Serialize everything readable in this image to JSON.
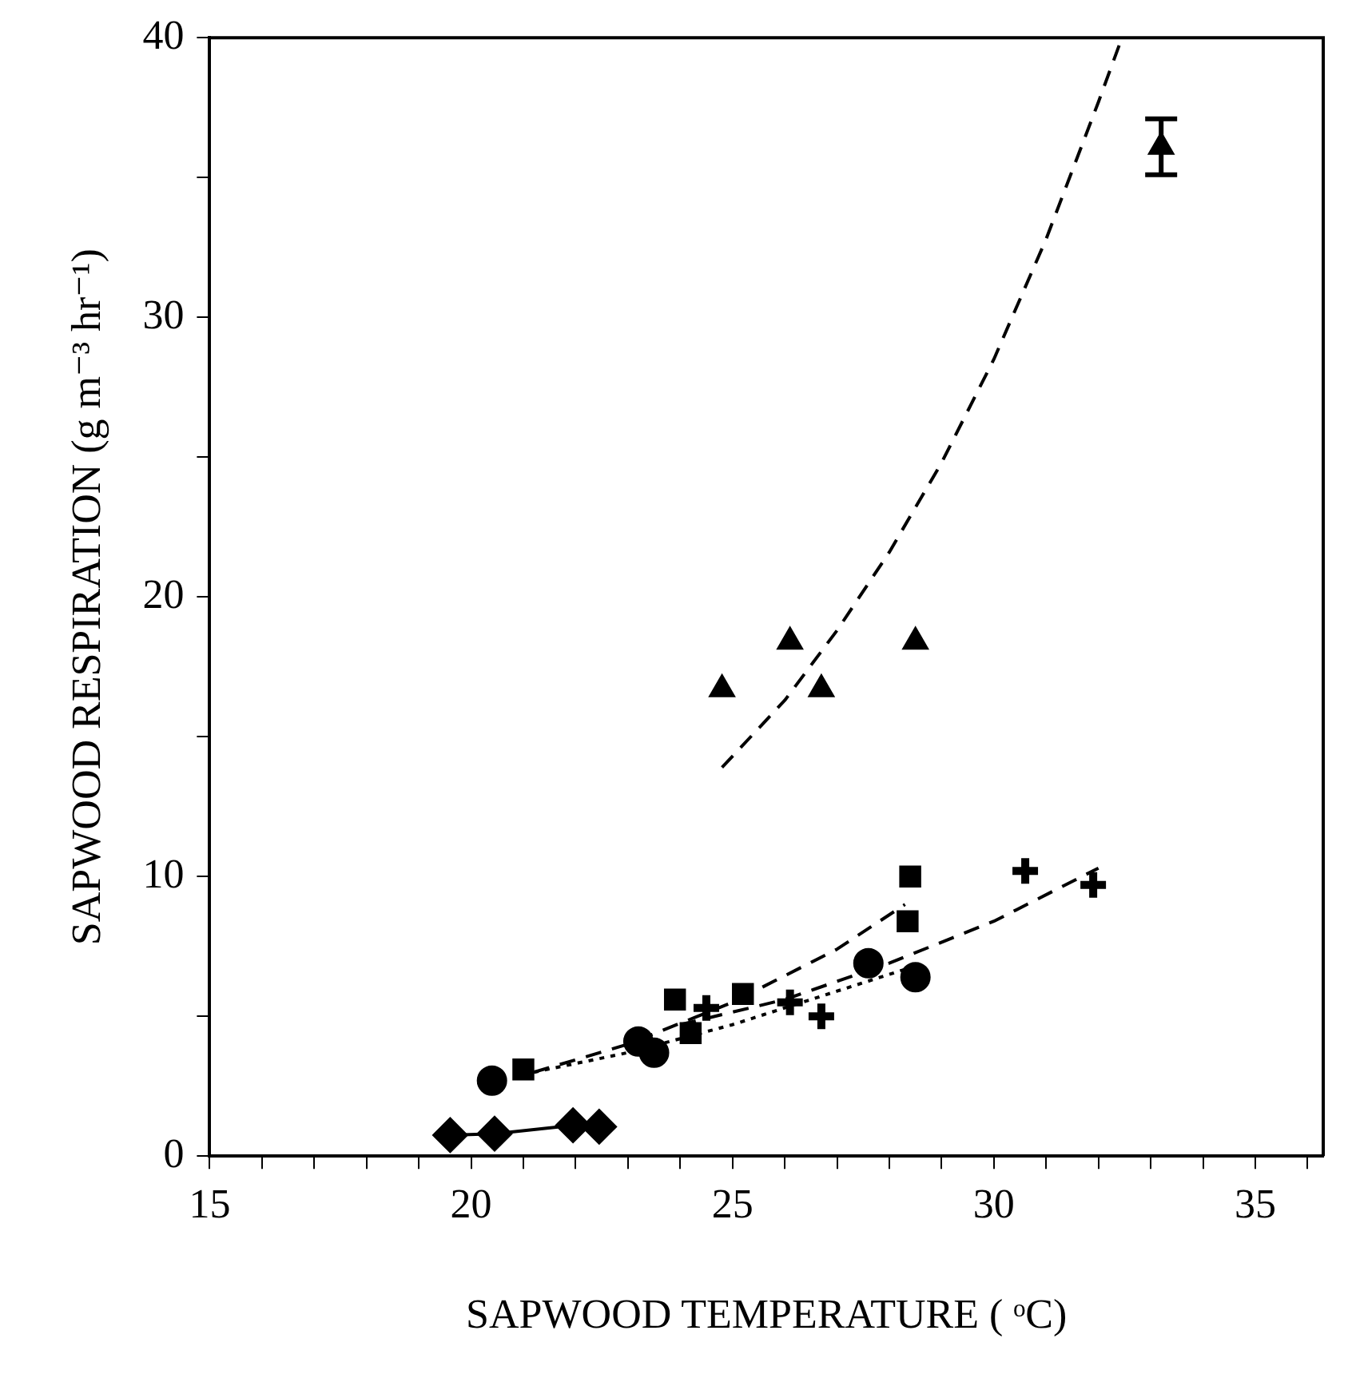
{
  "chart_data": {
    "type": "scatter",
    "xlabel": "SAPWOOD TEMPERATURE ( ᵒC)",
    "ylabel": "SAPWOOD RESPIRATION (g m⁻³ hr⁻¹)",
    "xlim": [
      15,
      36.3
    ],
    "ylim": [
      0,
      40
    ],
    "xticks": [
      15,
      {
        "value": 16,
        "label": null
      },
      {
        "value": 17,
        "label": null
      },
      {
        "value": 18,
        "label": null
      },
      {
        "value": 19,
        "label": null
      },
      20,
      {
        "value": 21,
        "label": null
      },
      {
        "value": 22,
        "label": null
      },
      {
        "value": 23,
        "label": null
      },
      {
        "value": 24,
        "label": null
      },
      25,
      {
        "value": 26,
        "label": null
      },
      {
        "value": 27,
        "label": null
      },
      {
        "value": 28,
        "label": null
      },
      {
        "value": 29,
        "label": null
      },
      30,
      {
        "value": 31,
        "label": null
      },
      {
        "value": 32,
        "label": null
      },
      {
        "value": 33,
        "label": null
      },
      {
        "value": 34,
        "label": null
      },
      35,
      {
        "value": 36,
        "label": null
      }
    ],
    "yticks": [
      0,
      {
        "value": 5,
        "label": null
      },
      10,
      {
        "value": 15,
        "label": null
      },
      20,
      {
        "value": 25,
        "label": null
      },
      30,
      {
        "value": 35,
        "label": null
      },
      40
    ],
    "grid": false,
    "legend": false,
    "series": [
      {
        "marker": "triangle",
        "color": "#000000",
        "x": [
          24.8,
          26.1,
          26.7,
          28.5,
          33.2
        ],
        "values": [
          16.7,
          18.4,
          16.7,
          18.4,
          36.1
        ],
        "errors": [
          null,
          null,
          null,
          null,
          1
        ]
      },
      {
        "marker": "square",
        "color": "#000000",
        "x": [
          21.0,
          23.9,
          24.2,
          25.2,
          28.35,
          28.4
        ],
        "values": [
          3.1,
          5.6,
          4.4,
          5.8,
          8.4,
          10.0
        ]
      },
      {
        "marker": "circle",
        "color": "#000000",
        "x": [
          20.4,
          23.2,
          23.5,
          27.6,
          28.5
        ],
        "values": [
          2.7,
          4.1,
          3.7,
          6.9,
          6.4
        ]
      },
      {
        "marker": "cross",
        "color": "#000000",
        "x": [
          24.5,
          26.1,
          26.7,
          30.6,
          31.9
        ],
        "values": [
          5.3,
          5.5,
          5.0,
          10.2,
          9.7
        ]
      },
      {
        "type": "line",
        "marker": "diamond",
        "line_style": "solid",
        "color": "#000000",
        "x": [
          19.6,
          20.45,
          21.95,
          22.45
        ],
        "values": [
          0.75,
          0.8,
          1.1,
          1.05
        ]
      },
      {
        "type": "line",
        "marker": "none",
        "line_style": "dashed",
        "color": "#000000",
        "x": [
          24.8,
          26,
          27,
          28,
          29,
          30,
          31,
          32,
          32.45
        ],
        "values": [
          13.9,
          16.3,
          18.8,
          21.6,
          24.8,
          28.5,
          32.8,
          37.7,
          40
        ]
      },
      {
        "type": "line",
        "marker": "none",
        "line_style": "dashed",
        "color": "#000000",
        "x": [
          21.2,
          23,
          25,
          27,
          28.3
        ],
        "values": [
          3.0,
          4.0,
          5.5,
          7.4,
          9.0
        ]
      },
      {
        "type": "line",
        "marker": "none",
        "line_style": "dotted",
        "color": "#000000",
        "x": [
          21.2,
          23,
          25,
          27,
          28.5
        ],
        "values": [
          3.0,
          3.7,
          4.7,
          5.9,
          6.8
        ]
      },
      {
        "type": "line",
        "marker": "none",
        "line_style": "dashed",
        "color": "#000000",
        "x": [
          24,
          26,
          28,
          30,
          32
        ],
        "values": [
          4.7,
          5.6,
          6.9,
          8.4,
          10.3
        ]
      }
    ]
  }
}
